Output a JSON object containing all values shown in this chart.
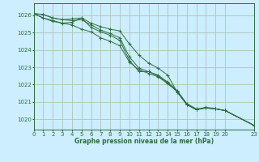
{
  "title": "Graphe pression niveau de la mer (hPa)",
  "bg_color": "#cceeff",
  "grid_color": "#aabbaa",
  "line_color": "#2d6e3e",
  "xlim": [
    0,
    23
  ],
  "ylim": [
    1019.4,
    1026.7
  ],
  "yticks": [
    1020,
    1021,
    1022,
    1023,
    1024,
    1025,
    1026
  ],
  "xticks": [
    0,
    1,
    2,
    3,
    4,
    5,
    6,
    7,
    8,
    9,
    10,
    11,
    12,
    13,
    14,
    15,
    16,
    17,
    18,
    19,
    20,
    23
  ],
  "xtick_labels": [
    "0",
    "1",
    "2",
    "3",
    "4",
    "5",
    "6",
    "7",
    "8",
    "9",
    "10",
    "11",
    "12",
    "13",
    "14",
    "15",
    "16",
    "17",
    "18",
    "19",
    "20",
    "23"
  ],
  "series": [
    {
      "x": [
        0,
        1,
        2,
        3,
        4,
        5,
        6,
        7,
        8,
        9,
        10,
        11,
        12,
        13,
        14,
        15,
        16,
        17,
        18,
        19,
        20,
        23
      ],
      "y": [
        1026.1,
        1026.05,
        1025.85,
        1025.75,
        1025.8,
        1025.85,
        1025.55,
        1025.35,
        1025.2,
        1025.1,
        1024.35,
        1023.7,
        1023.25,
        1022.95,
        1022.55,
        1021.55,
        1020.85,
        1020.55,
        1020.7,
        1020.6,
        1020.5,
        1019.65
      ]
    },
    {
      "x": [
        0,
        1,
        2,
        3,
        4,
        5,
        6,
        7,
        8,
        9,
        10,
        11,
        12,
        13,
        14,
        15,
        16,
        17,
        18,
        19,
        20,
        23
      ],
      "y": [
        1026.1,
        1026.05,
        1025.85,
        1025.75,
        1025.7,
        1025.75,
        1025.45,
        1025.15,
        1024.95,
        1024.7,
        1023.6,
        1022.95,
        1022.75,
        1022.5,
        1022.1,
        1021.6,
        1020.85,
        1020.55,
        1020.65,
        1020.6,
        1020.5,
        1019.65
      ]
    },
    {
      "x": [
        0,
        1,
        2,
        3,
        4,
        5,
        6,
        7,
        8,
        9,
        10,
        11,
        12,
        13,
        14,
        15,
        16,
        17,
        18,
        19,
        20,
        23
      ],
      "y": [
        1026.1,
        1025.85,
        1025.65,
        1025.55,
        1025.6,
        1025.85,
        1025.3,
        1025.05,
        1024.85,
        1024.55,
        1023.4,
        1022.75,
        1022.75,
        1022.55,
        1022.15,
        1021.65,
        1020.9,
        1020.6,
        1020.65,
        1020.6,
        1020.5,
        1019.65
      ]
    },
    {
      "x": [
        0,
        1,
        2,
        3,
        4,
        5,
        6,
        7,
        8,
        9,
        10,
        11,
        12,
        13,
        14,
        15,
        16,
        17,
        18,
        19,
        20,
        23
      ],
      "y": [
        1026.1,
        1025.85,
        1025.7,
        1025.55,
        1025.45,
        1025.2,
        1025.05,
        1024.7,
        1024.5,
        1024.25,
        1023.3,
        1022.85,
        1022.65,
        1022.45,
        1022.05,
        1021.6,
        1020.85,
        1020.55,
        1020.65,
        1020.6,
        1020.5,
        1019.65
      ]
    }
  ]
}
